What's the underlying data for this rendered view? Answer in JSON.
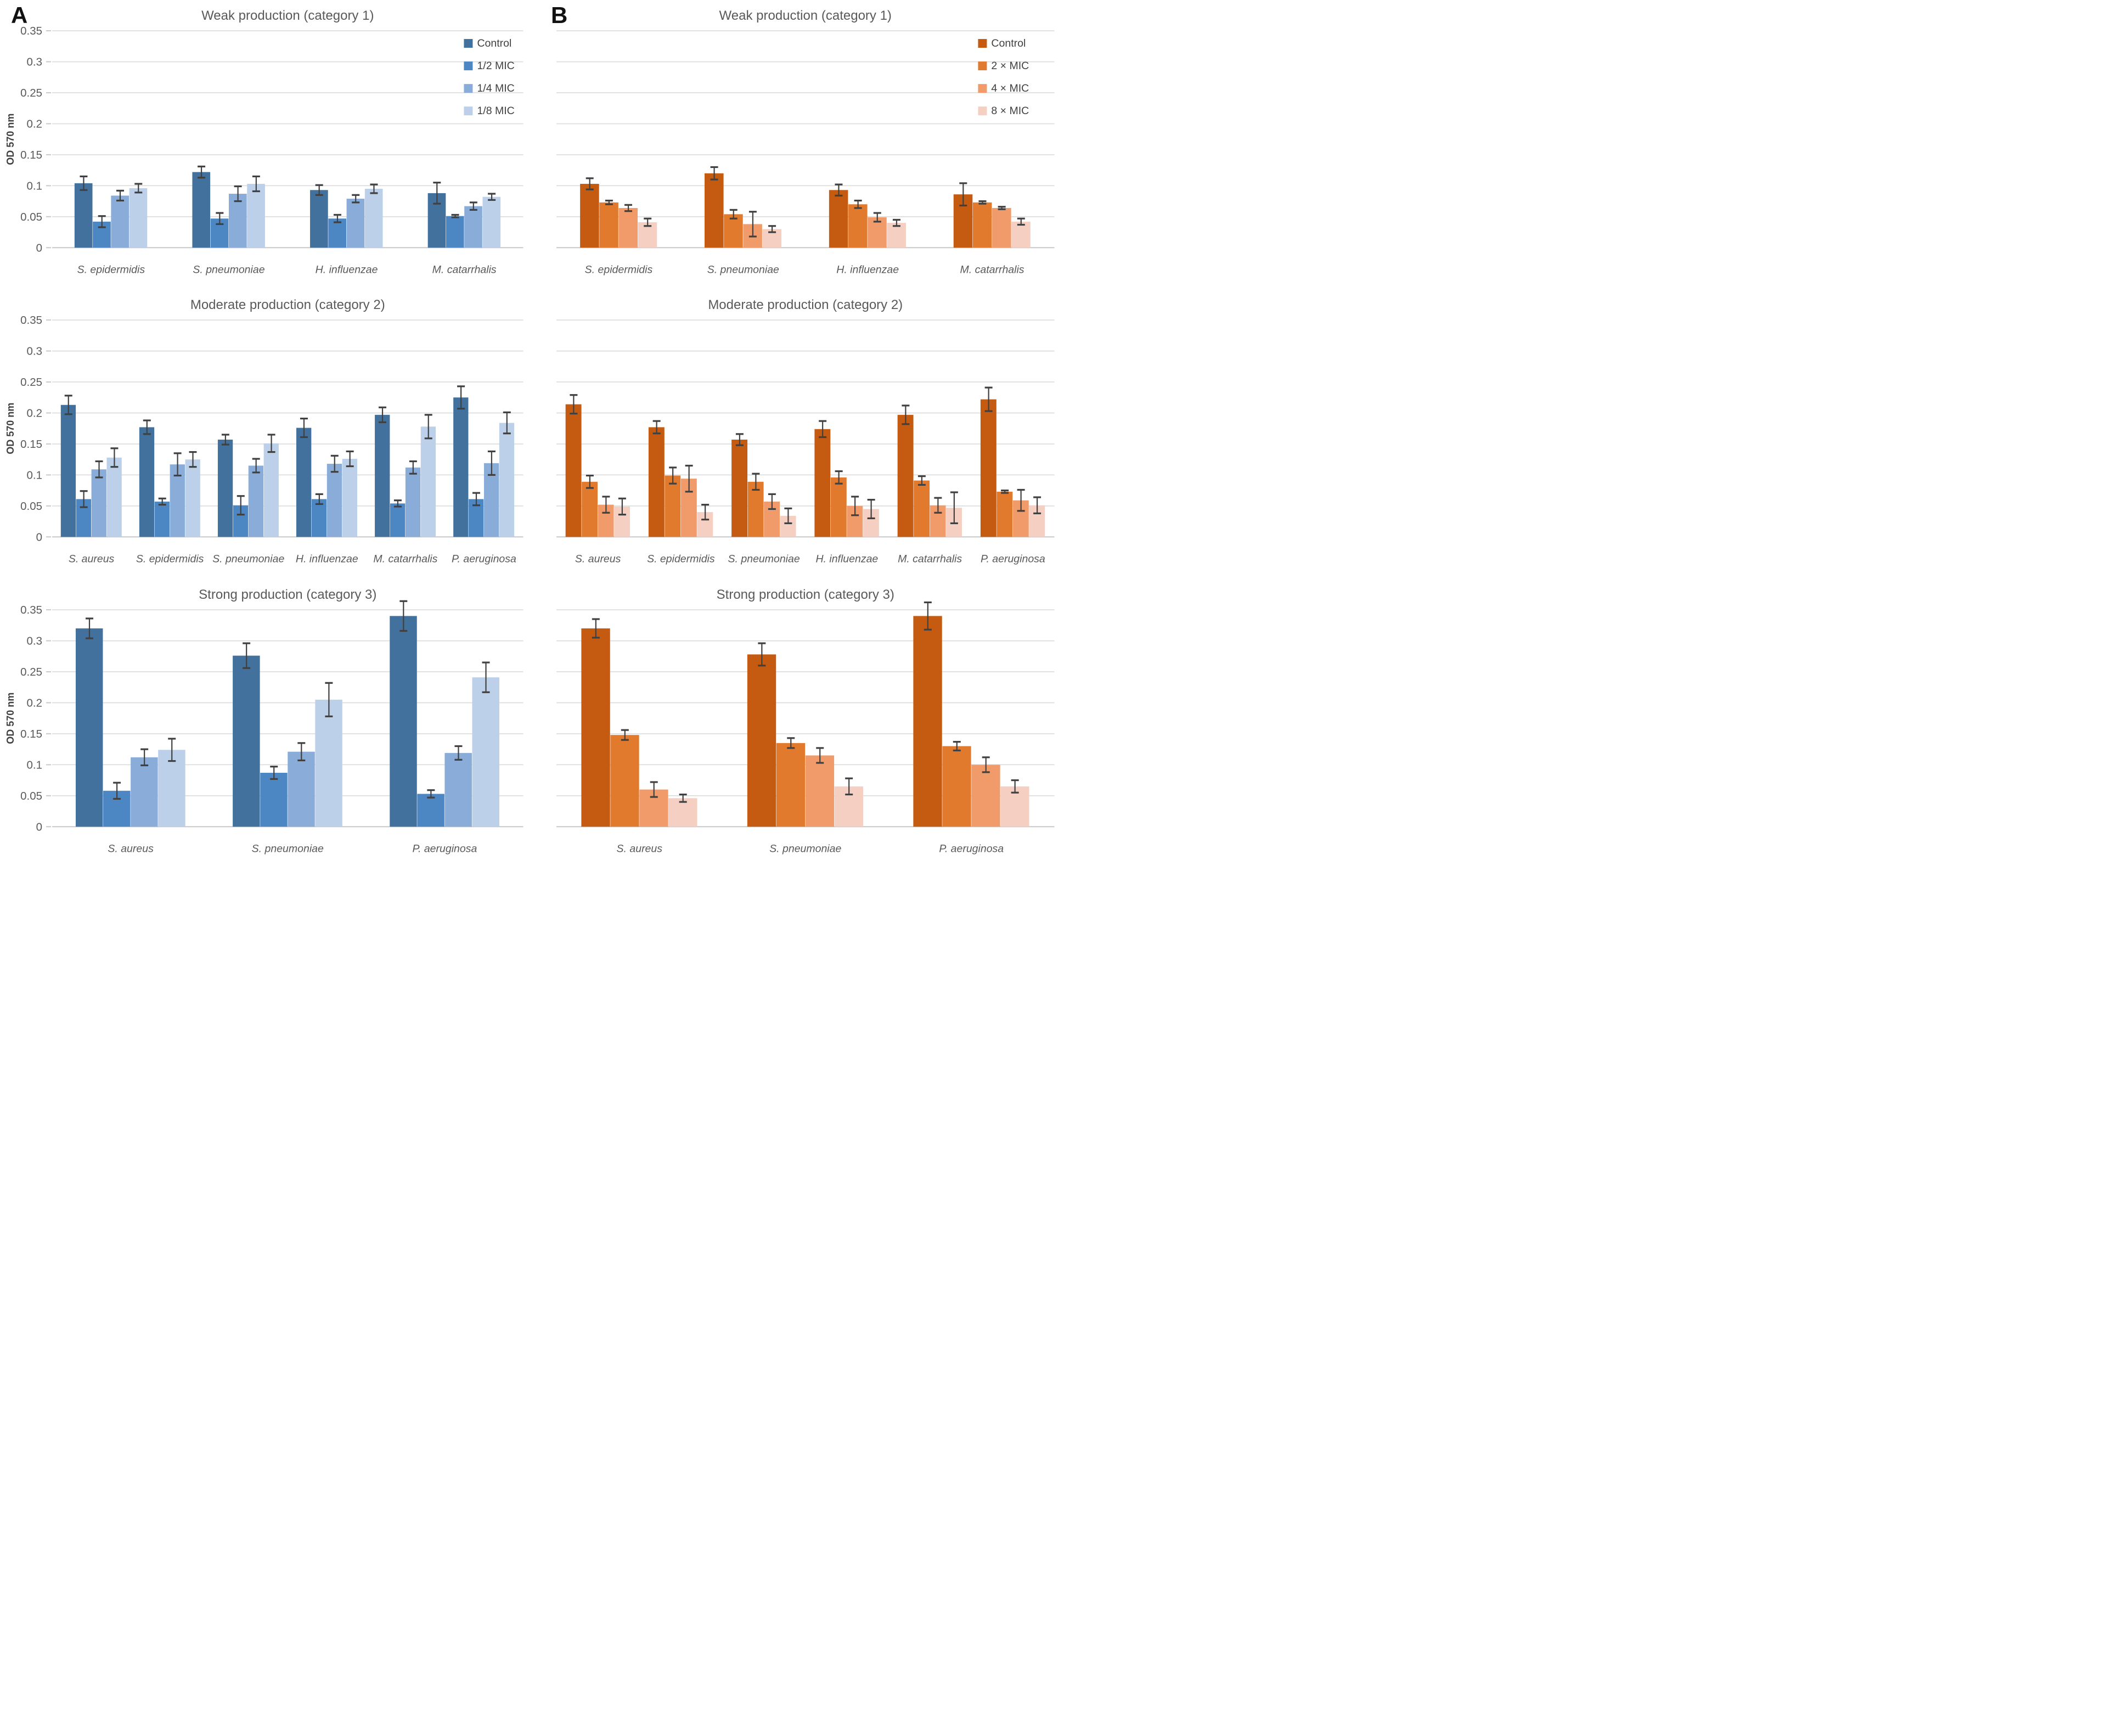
{
  "figure": {
    "panel_a_label": "A",
    "panel_b_label": "B"
  },
  "palette": {
    "blue": [
      "#41719C",
      "#4C86C3",
      "#8AACD9",
      "#BDD0EA"
    ],
    "orange": [
      "#C55A11",
      "#E27A2E",
      "#F09B69",
      "#F4CFC2"
    ],
    "gridline": "#DBDBDB",
    "baseline": "#C9C9C9",
    "error_bar": "#404040",
    "title_text": "#595959",
    "tick_text": "#595959",
    "legend_text": "#404040",
    "axis_text": "#404040"
  },
  "chart_data": [
    {
      "id": "weak-a",
      "panel": "A",
      "type": "bar",
      "title": "Weak production (category 1)",
      "ylabel": "OD 570 nm",
      "show_y_axis": true,
      "legend": true,
      "palette": "blue",
      "cluster": 0.62,
      "ylim": [
        0,
        0.35
      ],
      "yticks": [
        "0",
        "0.05",
        "0.1",
        "0.15",
        "0.2",
        "0.25",
        "0.3",
        "0.35"
      ],
      "grid": true,
      "legend_position": "top-right",
      "categories": [
        "S. epidermidis",
        "S. pneumoniae",
        "H. influenzae",
        "M. catarrhalis"
      ],
      "series": [
        {
          "name": "Control",
          "values": [
            0.104,
            0.122,
            0.093,
            0.088
          ],
          "errors": [
            0.011,
            0.009,
            0.008,
            0.017
          ]
        },
        {
          "name": "1/2 MIC",
          "values": [
            0.042,
            0.047,
            0.047,
            0.051
          ],
          "errors": [
            0.009,
            0.009,
            0.006,
            0.002
          ]
        },
        {
          "name": "1/4 MIC",
          "values": [
            0.084,
            0.087,
            0.079,
            0.067
          ],
          "errors": [
            0.008,
            0.012,
            0.006,
            0.006
          ]
        },
        {
          "name": "1/8 MIC",
          "values": [
            0.096,
            0.103,
            0.095,
            0.082
          ],
          "errors": [
            0.007,
            0.012,
            0.007,
            0.005
          ]
        }
      ]
    },
    {
      "id": "weak-b",
      "panel": "B",
      "type": "bar",
      "title": "Weak production (category 1)",
      "ylabel": "",
      "show_y_axis": false,
      "legend": true,
      "palette": "orange",
      "cluster": 0.62,
      "ylim": [
        0,
        0.35
      ],
      "yticks": [
        "0",
        "0.05",
        "0.1",
        "0.15",
        "0.2",
        "0.25",
        "0.3",
        "0.35"
      ],
      "grid": true,
      "legend_position": "top-right",
      "categories": [
        "S. epidermidis",
        "S. pneumoniae",
        "H. influenzae",
        "M. catarrhalis"
      ],
      "series": [
        {
          "name": "Control",
          "values": [
            0.103,
            0.12,
            0.093,
            0.086
          ],
          "errors": [
            0.009,
            0.01,
            0.009,
            0.018
          ]
        },
        {
          "name": "2 × MIC",
          "values": [
            0.073,
            0.054,
            0.07,
            0.073
          ],
          "errors": [
            0.003,
            0.007,
            0.006,
            0.002
          ]
        },
        {
          "name": "4 × MIC",
          "values": [
            0.064,
            0.038,
            0.049,
            0.064
          ],
          "errors": [
            0.005,
            0.02,
            0.007,
            0.002
          ]
        },
        {
          "name": "8 × MIC",
          "values": [
            0.041,
            0.03,
            0.04,
            0.042
          ],
          "errors": [
            0.006,
            0.005,
            0.005,
            0.005
          ]
        }
      ]
    },
    {
      "id": "moderate-a",
      "panel": "A",
      "type": "bar",
      "title": "Moderate production (category 2)",
      "ylabel": "OD 570 nm",
      "show_y_axis": true,
      "legend": false,
      "palette": "blue",
      "cluster": 0.78,
      "ylim": [
        0,
        0.35
      ],
      "yticks": [
        "0",
        "0.05",
        "0.1",
        "0.15",
        "0.2",
        "0.25",
        "0.3",
        "0.35"
      ],
      "grid": true,
      "legend_position": "none",
      "categories": [
        "S. aureus",
        "S. epidermidis",
        "S. pneumoniae",
        "H. influenzae",
        "M. catarrhalis",
        "P. aeruginosa"
      ],
      "series": [
        {
          "name": "Control",
          "values": [
            0.213,
            0.177,
            0.157,
            0.176,
            0.197,
            0.225
          ],
          "errors": [
            0.015,
            0.011,
            0.008,
            0.015,
            0.012,
            0.018
          ]
        },
        {
          "name": "1/2 MIC",
          "values": [
            0.061,
            0.057,
            0.051,
            0.061,
            0.054,
            0.061
          ],
          "errors": [
            0.013,
            0.005,
            0.015,
            0.008,
            0.005,
            0.01
          ]
        },
        {
          "name": "1/4 MIC",
          "values": [
            0.109,
            0.117,
            0.115,
            0.118,
            0.112,
            0.119
          ],
          "errors": [
            0.013,
            0.018,
            0.011,
            0.013,
            0.01,
            0.019
          ]
        },
        {
          "name": "1/8 MIC",
          "values": [
            0.128,
            0.125,
            0.151,
            0.126,
            0.178,
            0.184
          ],
          "errors": [
            0.015,
            0.012,
            0.014,
            0.012,
            0.019,
            0.017
          ]
        }
      ]
    },
    {
      "id": "moderate-b",
      "panel": "B",
      "type": "bar",
      "title": "Moderate production (category 2)",
      "ylabel": "",
      "show_y_axis": false,
      "legend": false,
      "palette": "orange",
      "cluster": 0.78,
      "ylim": [
        0,
        0.35
      ],
      "yticks": [
        "0",
        "0.05",
        "0.1",
        "0.15",
        "0.2",
        "0.25",
        "0.3",
        "0.35"
      ],
      "grid": true,
      "legend_position": "none",
      "categories": [
        "S. aureus",
        "S. epidermidis",
        "S. pneumoniae",
        "H. influenzae",
        "M. catarrhalis",
        "P. aeruginosa"
      ],
      "series": [
        {
          "name": "Control",
          "values": [
            0.214,
            0.177,
            0.157,
            0.174,
            0.197,
            0.222
          ],
          "errors": [
            0.015,
            0.01,
            0.009,
            0.013,
            0.015,
            0.019
          ]
        },
        {
          "name": "2 × MIC",
          "values": [
            0.089,
            0.099,
            0.089,
            0.096,
            0.091,
            0.073
          ],
          "errors": [
            0.01,
            0.013,
            0.013,
            0.01,
            0.007,
            0.002
          ]
        },
        {
          "name": "4 × MIC",
          "values": [
            0.052,
            0.094,
            0.057,
            0.05,
            0.051,
            0.059
          ],
          "errors": [
            0.013,
            0.021,
            0.012,
            0.015,
            0.012,
            0.017
          ]
        },
        {
          "name": "8 × MIC",
          "values": [
            0.049,
            0.04,
            0.034,
            0.045,
            0.047,
            0.051
          ],
          "errors": [
            0.013,
            0.012,
            0.012,
            0.015,
            0.025,
            0.013
          ]
        }
      ]
    },
    {
      "id": "strong-a",
      "panel": "A",
      "type": "bar",
      "title": "Strong production (category 3)",
      "ylabel": "OD 570 nm",
      "show_y_axis": true,
      "legend": false,
      "palette": "blue",
      "cluster": 0.7,
      "ylim": [
        0,
        0.35
      ],
      "yticks": [
        "0",
        "0.05",
        "0.1",
        "0.15",
        "0.2",
        "0.25",
        "0.3",
        "0.35"
      ],
      "grid": true,
      "legend_position": "none",
      "categories": [
        "S. aureus",
        "S. pneumoniae",
        "P. aeruginosa"
      ],
      "series": [
        {
          "name": "Control",
          "values": [
            0.32,
            0.276,
            0.34
          ],
          "errors": [
            0.016,
            0.02,
            0.024
          ]
        },
        {
          "name": "1/2 MIC",
          "values": [
            0.058,
            0.087,
            0.053
          ],
          "errors": [
            0.013,
            0.01,
            0.006
          ]
        },
        {
          "name": "1/4 MIC",
          "values": [
            0.112,
            0.121,
            0.119
          ],
          "errors": [
            0.013,
            0.014,
            0.011
          ]
        },
        {
          "name": "1/8 MIC",
          "values": [
            0.124,
            0.205,
            0.241
          ],
          "errors": [
            0.018,
            0.027,
            0.024
          ]
        }
      ]
    },
    {
      "id": "strong-b",
      "panel": "B",
      "type": "bar",
      "title": "Strong production (category 3)",
      "ylabel": "",
      "show_y_axis": false,
      "legend": false,
      "palette": "orange",
      "cluster": 0.7,
      "ylim": [
        0,
        0.35
      ],
      "yticks": [
        "0",
        "0.05",
        "0.1",
        "0.15",
        "0.2",
        "0.25",
        "0.3",
        "0.35"
      ],
      "grid": true,
      "legend_position": "none",
      "categories": [
        "S. aureus",
        "S. pneumoniae",
        "P. aeruginosa"
      ],
      "series": [
        {
          "name": "Control",
          "values": [
            0.32,
            0.278,
            0.34
          ],
          "errors": [
            0.015,
            0.018,
            0.022
          ]
        },
        {
          "name": "2 × MIC",
          "values": [
            0.148,
            0.135,
            0.13
          ],
          "errors": [
            0.008,
            0.008,
            0.007
          ]
        },
        {
          "name": "4 × MIC",
          "values": [
            0.06,
            0.115,
            0.1
          ],
          "errors": [
            0.012,
            0.012,
            0.012
          ]
        },
        {
          "name": "8 × MIC",
          "values": [
            0.046,
            0.065,
            0.065
          ],
          "errors": [
            0.006,
            0.013,
            0.01
          ]
        }
      ]
    }
  ]
}
